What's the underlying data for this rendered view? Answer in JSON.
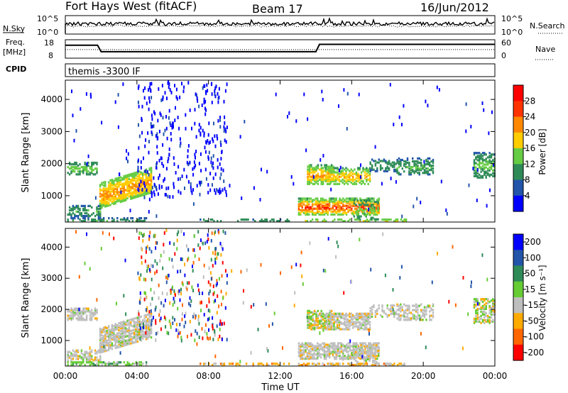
{
  "header": {
    "title": "Fort Hays West (fitACF)",
    "beam": "Beam 17",
    "date": "16/Jun/2012"
  },
  "status_panels": {
    "nsky_label": "N.Sky",
    "nsearch_label": "N.Search",
    "noise_ticks": [
      "10^5",
      "10^0"
    ],
    "freq_label_top": "Freq.",
    "freq_label_bottom": "[MHz]",
    "freq_ticks": [
      "18",
      "8"
    ],
    "nave_label": "Nave",
    "nave_ticks": [
      "60",
      "0"
    ],
    "cpid_label": "CPID",
    "cpid_value": "themis -3300 IF",
    "freq_trace": [
      [
        0,
        15
      ],
      [
        1.8,
        15
      ],
      [
        2.0,
        11.5
      ],
      [
        14.0,
        11.5
      ],
      [
        14.2,
        15.5
      ],
      [
        24,
        15.5
      ]
    ],
    "nave_level": 28
  },
  "chart_data": [
    {
      "type": "heatmap",
      "ylabel": "Slant Range [km]",
      "xlabel": "",
      "ylim": [
        180,
        4600
      ],
      "xlim": [
        0,
        24
      ],
      "yticks": [
        "1000",
        "2000",
        "3000",
        "4000"
      ],
      "yticks_values": [
        1000,
        2000,
        3000,
        4000
      ],
      "colorbar": {
        "label": "Power [dB]",
        "ticks": [
          "4",
          "8",
          "12",
          "16",
          "20",
          "24",
          "28"
        ],
        "range": [
          0,
          32
        ],
        "colors": [
          "#0000ff",
          "#2255aa",
          "#2e8b57",
          "#66cc44",
          "#ffcc00",
          "#ff8800",
          "#ff3300",
          "#ff0000"
        ]
      }
    },
    {
      "type": "heatmap",
      "ylabel": "Slant Range [km]",
      "xlabel": "Time UT",
      "ylim": [
        180,
        4600
      ],
      "xlim": [
        0,
        24
      ],
      "yticks": [
        "1000",
        "2000",
        "3000",
        "4000"
      ],
      "yticks_values": [
        1000,
        2000,
        3000,
        4000
      ],
      "xticks": [
        "00:00",
        "04:00",
        "08:00",
        "12:00",
        "16:00",
        "20:00",
        "00:00"
      ],
      "xticks_values": [
        0,
        4,
        8,
        12,
        16,
        20,
        24
      ],
      "colorbar": {
        "label": "Velocity [m s⁻¹]",
        "ticks": [
          "200",
          "100",
          "50",
          "15",
          "-15",
          "-50",
          "-100",
          "-200"
        ],
        "colors": [
          "#0000ff",
          "#2255aa",
          "#2e8b57",
          "#66cc33",
          "#bebebe",
          "#ffaa00",
          "#ff6600",
          "#ff0000"
        ]
      }
    }
  ],
  "echo_regions": [
    {
      "t0": 0.1,
      "t1": 1.8,
      "r0": 1700,
      "r1": 2100,
      "power": [
        8,
        16
      ],
      "vel": "neutral",
      "density": 0.55
    },
    {
      "t0": 1.9,
      "t1": 4.8,
      "r0": 900,
      "r1": 1700,
      "power": [
        12,
        24
      ],
      "vel": "neutral",
      "density": 0.75,
      "slope": 500
    },
    {
      "t0": 0.1,
      "t1": 2.0,
      "r0": 400,
      "r1": 750,
      "power": [
        6,
        14
      ],
      "vel": "neutral",
      "density": 0.5
    },
    {
      "t0": 0.1,
      "t1": 4.5,
      "r0": 200,
      "r1": 340,
      "power": [
        6,
        14
      ],
      "vel": "positive",
      "density": 0.45
    },
    {
      "t0": 13.5,
      "t1": 15.0,
      "r0": 1400,
      "r1": 2000,
      "power": [
        10,
        24
      ],
      "vel": "mixed",
      "density": 0.6
    },
    {
      "t0": 14.5,
      "t1": 17.0,
      "r0": 1400,
      "r1": 1900,
      "power": [
        10,
        22
      ],
      "vel": "neutral",
      "density": 0.6
    },
    {
      "t0": 13.0,
      "t1": 17.5,
      "r0": 450,
      "r1": 950,
      "power": [
        10,
        30
      ],
      "vel": "neutral",
      "density": 0.65
    },
    {
      "t0": 13.0,
      "t1": 19.0,
      "r0": 200,
      "r1": 320,
      "power": [
        8,
        20
      ],
      "vel": "negative",
      "density": 0.5
    },
    {
      "t0": 17.0,
      "t1": 18.5,
      "r0": 1800,
      "r1": 2200,
      "power": [
        6,
        12
      ],
      "vel": "neutral",
      "density": 0.35
    },
    {
      "t0": 18.5,
      "t1": 20.5,
      "r0": 1700,
      "r1": 2200,
      "power": [
        6,
        14
      ],
      "vel": "neutral",
      "density": 0.45
    },
    {
      "t0": 22.8,
      "t1": 24.0,
      "r0": 1600,
      "r1": 2400,
      "power": [
        6,
        16
      ],
      "vel": "mixed",
      "density": 0.55
    },
    {
      "t0": 7.5,
      "t1": 12.5,
      "r0": 200,
      "r1": 320,
      "power": [
        6,
        12
      ],
      "vel": "negative",
      "density": 0.35
    },
    {
      "t0": 16.0,
      "t1": 17.5,
      "r0": 300,
      "r1": 900,
      "power": [
        8,
        16
      ],
      "vel": "neutral",
      "density": 0.3
    }
  ],
  "scatter_regions": [
    {
      "t0": 4.0,
      "t1": 9.0,
      "r0": 1000,
      "r1": 4600,
      "count": 300
    },
    {
      "t0": 0.1,
      "t1": 24.0,
      "r0": 300,
      "r1": 4600,
      "count": 120
    }
  ]
}
